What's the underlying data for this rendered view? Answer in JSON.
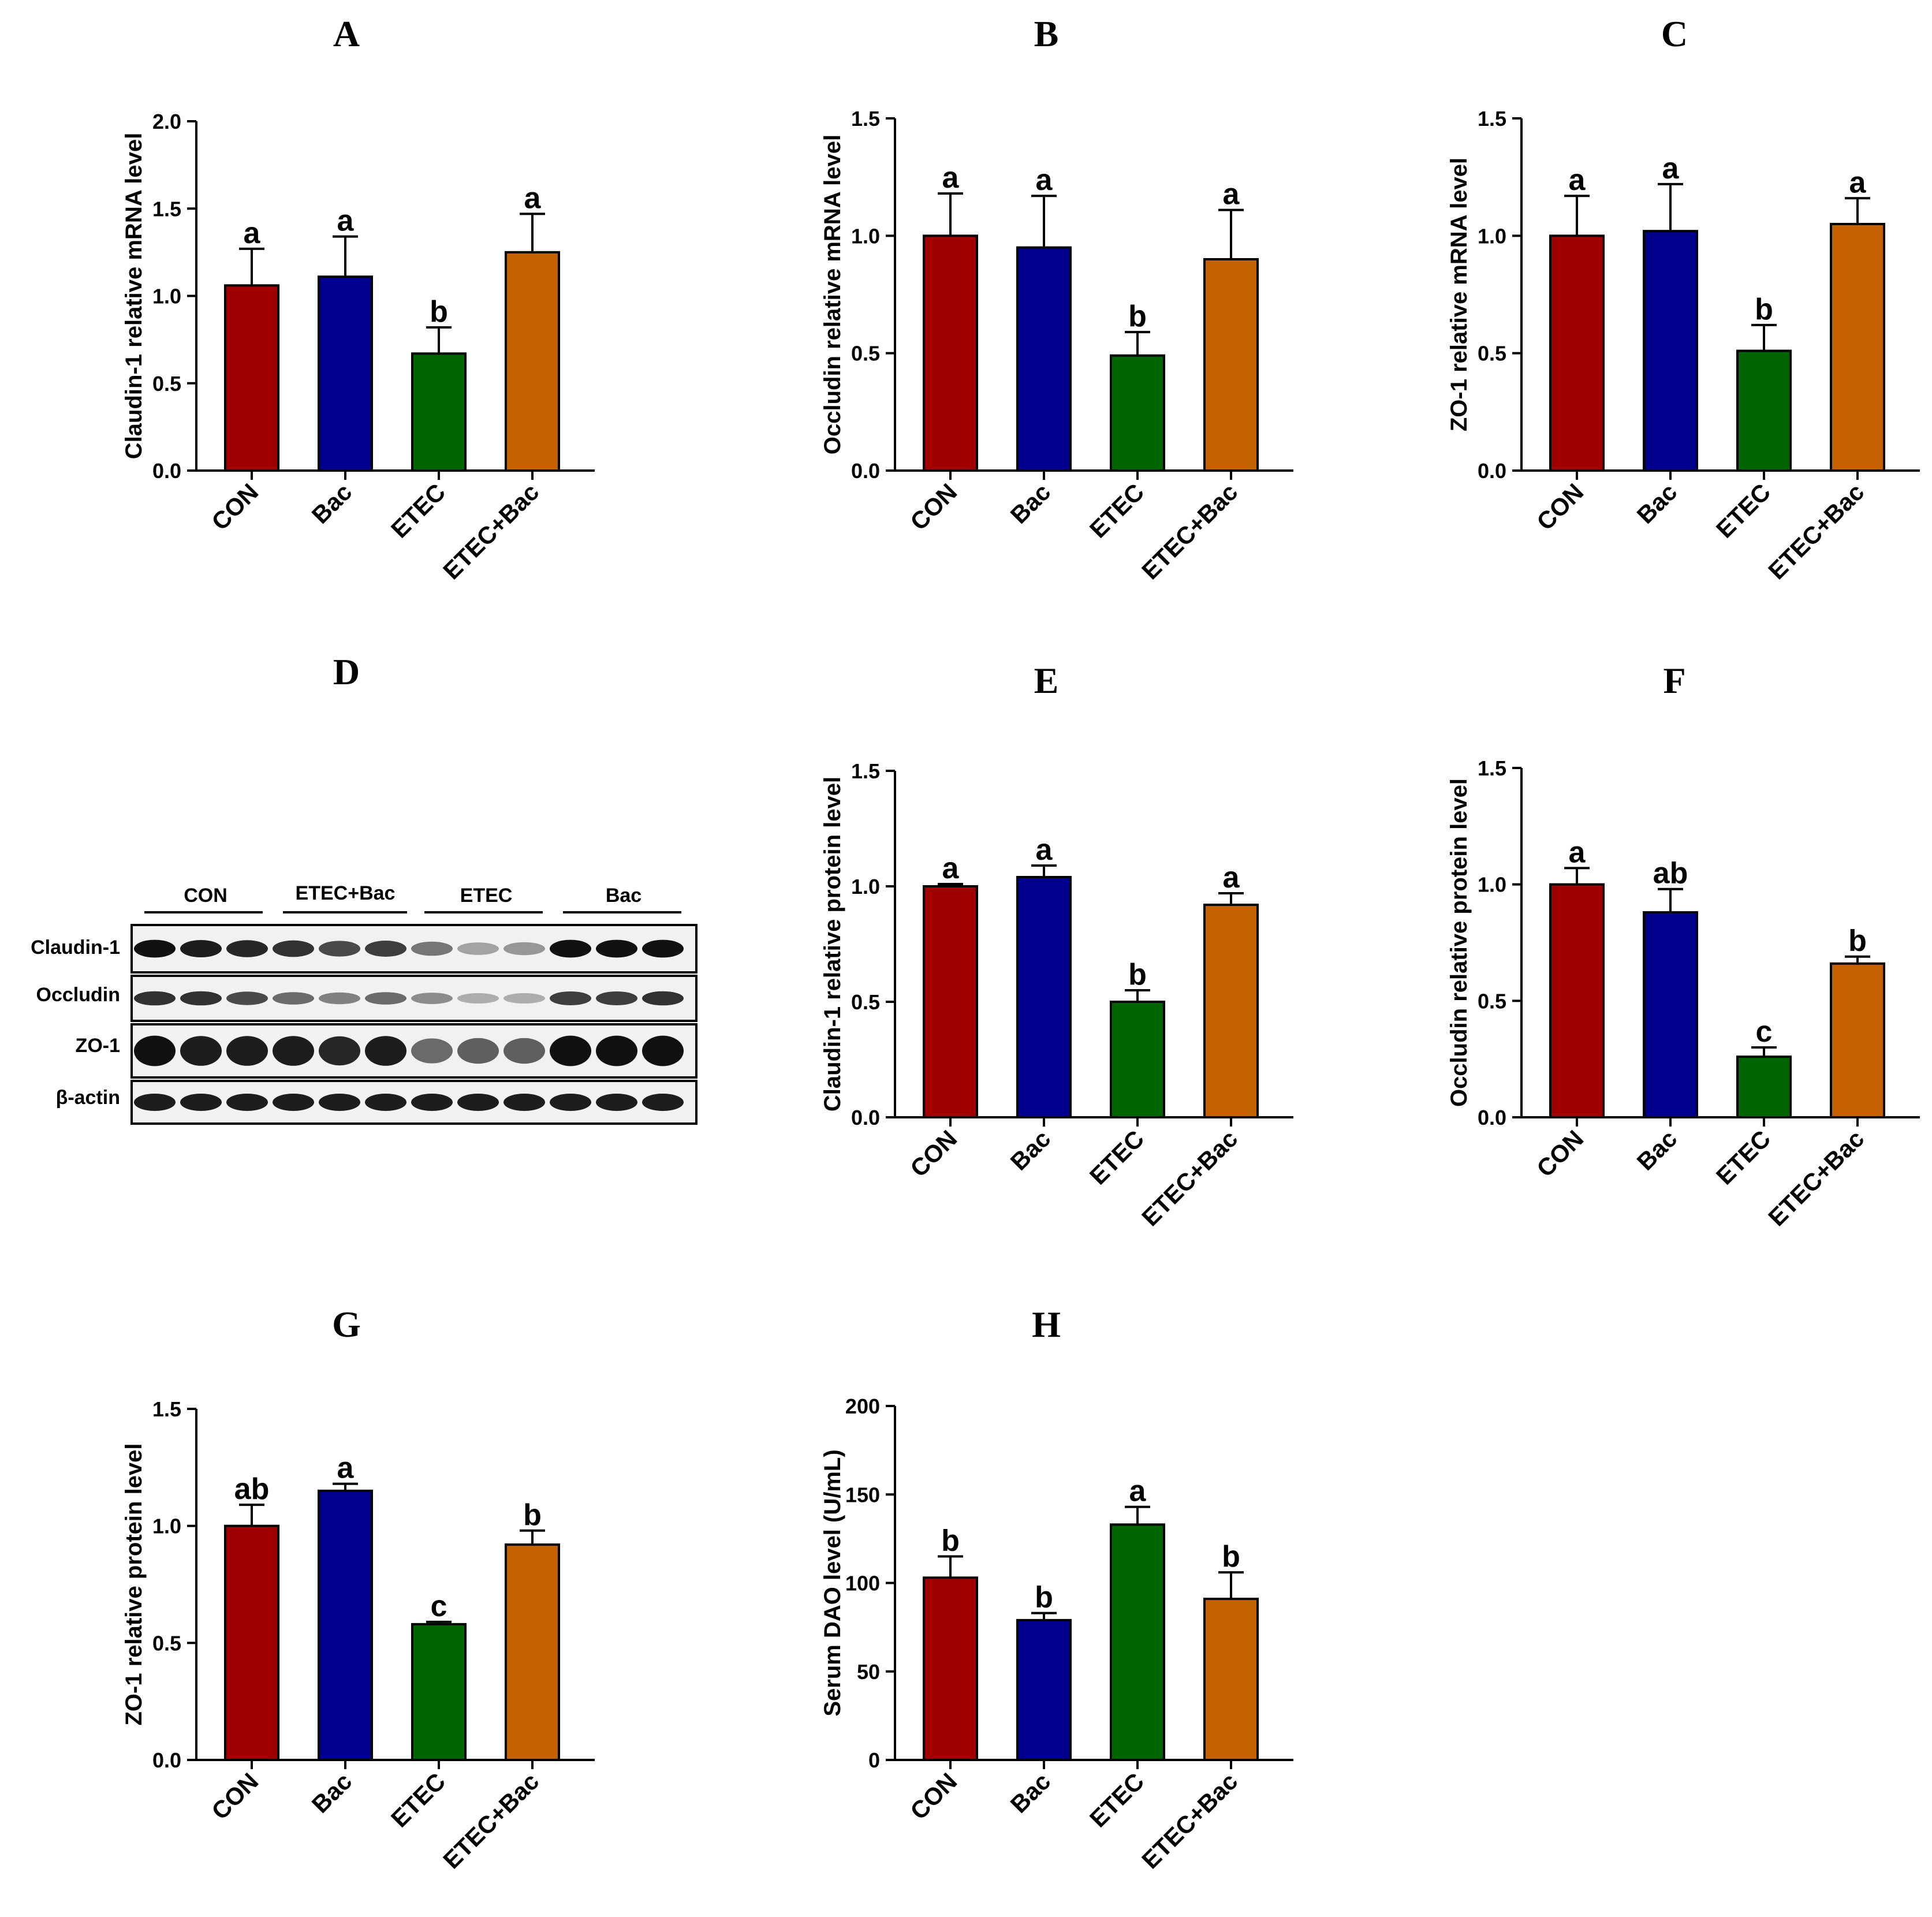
{
  "colors": {
    "CON": "#a00000",
    "Bac": "#00008c",
    "ETEC": "#006400",
    "ETEC+Bac": "#c46200"
  },
  "chart_data": [
    {
      "panel": "A",
      "type": "bar",
      "ylabel": "Claudin-1 relative mRNA level",
      "categories": [
        "CON",
        "Bac",
        "ETEC",
        "ETEC+Bac"
      ],
      "values": [
        1.06,
        1.11,
        0.67,
        1.25
      ],
      "errors": [
        0.21,
        0.23,
        0.15,
        0.22
      ],
      "sig": [
        "a",
        "a",
        "b",
        "a"
      ],
      "ylim": [
        0,
        2.0
      ],
      "yticks": [
        "0.0",
        "0.5",
        "1.0",
        "1.5",
        "2.0"
      ]
    },
    {
      "panel": "B",
      "type": "bar",
      "ylabel": "Occludin relative mRNA level",
      "categories": [
        "CON",
        "Bac",
        "ETEC",
        "ETEC+Bac"
      ],
      "values": [
        1.0,
        0.95,
        0.49,
        0.9
      ],
      "errors": [
        0.18,
        0.22,
        0.1,
        0.21
      ],
      "sig": [
        "a",
        "a",
        "b",
        "a"
      ],
      "ylim": [
        0,
        1.5
      ],
      "yticks": [
        "0.0",
        "0.5",
        "1.0",
        "1.5"
      ]
    },
    {
      "panel": "C",
      "type": "bar",
      "ylabel": "ZO-1 relative mRNA level",
      "categories": [
        "CON",
        "Bac",
        "ETEC",
        "ETEC+Bac"
      ],
      "values": [
        1.0,
        1.02,
        0.51,
        1.05
      ],
      "errors": [
        0.17,
        0.2,
        0.11,
        0.11
      ],
      "sig": [
        "a",
        "a",
        "b",
        "a"
      ],
      "ylim": [
        0,
        1.5
      ],
      "yticks": [
        "0.0",
        "0.5",
        "1.0",
        "1.5"
      ]
    },
    {
      "panel": "E",
      "type": "bar",
      "ylabel": "Claudin-1 relative protein level",
      "categories": [
        "CON",
        "Bac",
        "ETEC",
        "ETEC+Bac"
      ],
      "values": [
        1.0,
        1.04,
        0.5,
        0.92
      ],
      "errors": [
        0.01,
        0.05,
        0.05,
        0.05
      ],
      "sig": [
        "a",
        "a",
        "b",
        "a"
      ],
      "ylim": [
        0,
        1.5
      ],
      "yticks": [
        "0.0",
        "0.5",
        "1.0",
        "1.5"
      ]
    },
    {
      "panel": "F",
      "type": "bar",
      "ylabel": "Occludin relative protein level",
      "categories": [
        "CON",
        "Bac",
        "ETEC",
        "ETEC+Bac"
      ],
      "values": [
        1.0,
        0.88,
        0.26,
        0.66
      ],
      "errors": [
        0.07,
        0.1,
        0.04,
        0.03
      ],
      "sig": [
        "a",
        "ab",
        "c",
        "b"
      ],
      "ylim": [
        0,
        1.5
      ],
      "yticks": [
        "0.0",
        "0.5",
        "1.0",
        "1.5"
      ]
    },
    {
      "panel": "G",
      "type": "bar",
      "ylabel": "ZO-1 relative protein level",
      "categories": [
        "CON",
        "Bac",
        "ETEC",
        "ETEC+Bac"
      ],
      "values": [
        1.0,
        1.15,
        0.58,
        0.92
      ],
      "errors": [
        0.09,
        0.03,
        0.01,
        0.06
      ],
      "sig": [
        "ab",
        "a",
        "c",
        "b"
      ],
      "ylim": [
        0,
        1.5
      ],
      "yticks": [
        "0.0",
        "0.5",
        "1.0",
        "1.5"
      ]
    },
    {
      "panel": "H",
      "type": "bar",
      "ylabel": "Serum DAO level (U/mL)",
      "categories": [
        "CON",
        "Bac",
        "ETEC",
        "ETEC+Bac"
      ],
      "values": [
        103,
        79,
        133,
        91
      ],
      "errors": [
        12,
        4,
        10,
        15
      ],
      "sig": [
        "b",
        "b",
        "a",
        "b"
      ],
      "ylim": [
        0,
        200
      ],
      "yticks": [
        "0",
        "50",
        "100",
        "150",
        "200"
      ]
    }
  ],
  "western_blot": {
    "panel": "D",
    "groups": [
      "CON",
      "ETEC+Bac",
      "ETEC",
      "Bac"
    ],
    "proteins": [
      "Claudin-1",
      "Occludin",
      "ZO-1",
      "β-actin"
    ]
  }
}
